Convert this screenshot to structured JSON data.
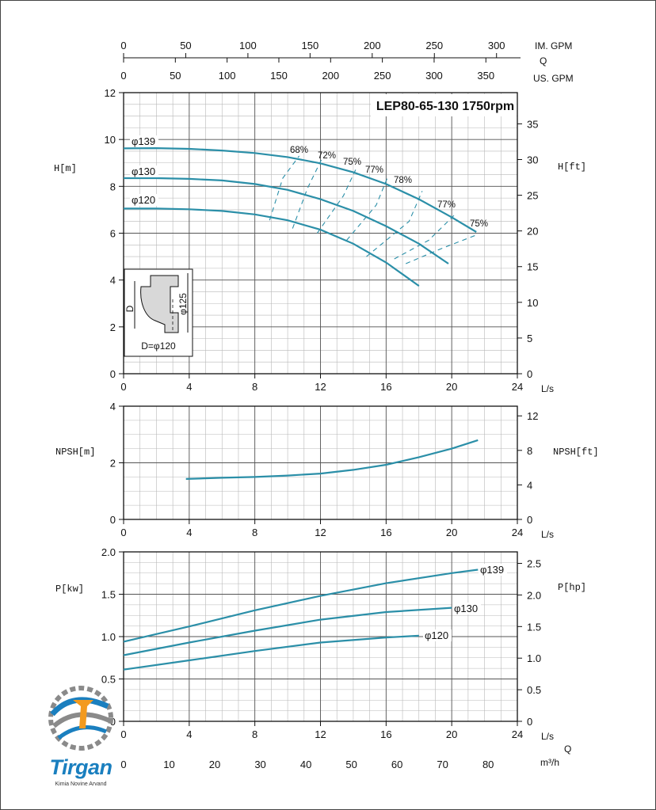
{
  "chart_data": [
    {
      "type": "line",
      "title": "LEP80-65-130 1750rpm",
      "x_axis": {
        "label": "L/s",
        "range": [
          0,
          24
        ],
        "ticks": [
          0,
          4,
          8,
          12,
          16,
          20,
          24
        ]
      },
      "top_axes": [
        {
          "label": "IM. GPM",
          "ticks": [
            0,
            50,
            100,
            150,
            200,
            250,
            300
          ]
        },
        {
          "label": "Q",
          "ticks": []
        },
        {
          "label": "US. GPM",
          "ticks": [
            0,
            50,
            100,
            150,
            200,
            250,
            300,
            350
          ]
        }
      ],
      "y_left": {
        "label": "H[m]",
        "range": [
          0,
          12
        ],
        "ticks": [
          0,
          2,
          4,
          6,
          8,
          10,
          12
        ]
      },
      "y_right": {
        "label": "H[ft]",
        "ticks": [
          0,
          5,
          10,
          15,
          20,
          25,
          30,
          35
        ]
      },
      "grid": true,
      "series": [
        {
          "name": "φ139",
          "color": "#2b8fa8",
          "x": [
            0,
            2,
            4,
            6,
            8,
            10,
            12,
            14,
            16,
            18,
            20,
            21.5
          ],
          "y": [
            9.62,
            9.63,
            9.6,
            9.53,
            9.42,
            9.25,
            8.98,
            8.6,
            8.1,
            7.45,
            6.68,
            6.05
          ]
        },
        {
          "name": "φ130",
          "color": "#2b8fa8",
          "x": [
            0,
            2,
            4,
            6,
            8,
            10,
            12,
            14,
            16,
            18,
            19.8
          ],
          "y": [
            8.35,
            8.35,
            8.32,
            8.25,
            8.1,
            7.85,
            7.45,
            6.95,
            6.3,
            5.55,
            4.7
          ]
        },
        {
          "name": "φ120",
          "color": "#2b8fa8",
          "x": [
            0,
            2,
            4,
            6,
            8,
            10,
            12,
            14,
            16,
            18
          ],
          "y": [
            7.05,
            7.05,
            7.02,
            6.95,
            6.8,
            6.55,
            6.15,
            5.55,
            4.75,
            3.75
          ]
        }
      ],
      "efficiency_labels": [
        "68%",
        "72%",
        "75%",
        "77%",
        "78%",
        "77%",
        "75%"
      ],
      "efficiency_curves": [
        {
          "label": "68%",
          "x": [
            8.9,
            9.7,
            10.7
          ],
          "y": [
            6.55,
            8.35,
            9.3
          ]
        },
        {
          "label": "72%",
          "x": [
            10.3,
            11.2,
            12.1
          ],
          "y": [
            6.2,
            7.9,
            9.2
          ]
        },
        {
          "label": "75%",
          "x": [
            11.8,
            13.4,
            14.2
          ],
          "y": [
            6.0,
            7.6,
            8.8
          ]
        },
        {
          "label": "77%",
          "x": [
            13.6,
            15.4,
            16.1
          ],
          "y": [
            5.7,
            7.2,
            8.4
          ]
        },
        {
          "label": "78%",
          "x": [
            14.8,
            17.4,
            18.2
          ],
          "y": [
            5.0,
            6.5,
            7.8
          ]
        },
        {
          "label": "77%",
          "x": [
            16.5,
            18.6,
            20.2
          ],
          "y": [
            4.9,
            5.7,
            6.8
          ]
        },
        {
          "label": "75%",
          "x": [
            17.2,
            19.4,
            21.6
          ],
          "y": [
            4.7,
            5.35,
            5.95
          ]
        }
      ],
      "inset": {
        "labels": [
          "D",
          "φ125",
          "D=φ120"
        ]
      }
    },
    {
      "type": "line",
      "x_axis": {
        "label": "L/s",
        "range": [
          0,
          24
        ],
        "ticks": [
          0,
          4,
          8,
          12,
          16,
          20,
          24
        ]
      },
      "y_left": {
        "label": "NPSH[m]",
        "range": [
          0,
          4
        ],
        "ticks": [
          0,
          2,
          4
        ]
      },
      "y_right": {
        "label": "NPSH[ft]",
        "ticks": [
          0,
          4,
          8,
          12
        ]
      },
      "grid": true,
      "series": [
        {
          "color": "#2b8fa8",
          "x": [
            3.8,
            6,
            8,
            10,
            12,
            14,
            16,
            18,
            20,
            21.6
          ],
          "y": [
            1.43,
            1.47,
            1.5,
            1.55,
            1.62,
            1.75,
            1.93,
            2.2,
            2.5,
            2.8
          ]
        }
      ]
    },
    {
      "type": "line",
      "x_axis": {
        "label": "L/s",
        "range": [
          0,
          24
        ],
        "ticks": [
          0,
          4,
          8,
          12,
          16,
          20,
          24
        ]
      },
      "bottom_axes": [
        {
          "label": "Q",
          "ticks": []
        },
        {
          "label": "m³/h",
          "ticks": [
            0,
            10,
            20,
            30,
            40,
            50,
            60,
            70,
            80
          ]
        }
      ],
      "y_left": {
        "label": "P[kw]",
        "range": [
          0,
          2.0
        ],
        "ticks": [
          "0",
          "0.5",
          "1.0",
          "1.5",
          "2.0"
        ]
      },
      "y_right": {
        "label": "P[hp]",
        "ticks": [
          "0",
          "0.5",
          "1.0",
          "1.5",
          "2.0",
          "2.5"
        ]
      },
      "grid": true,
      "series": [
        {
          "name": "φ139",
          "color": "#2b8fa8",
          "x": [
            0,
            4,
            8,
            12,
            16,
            20,
            21.6
          ],
          "y": [
            0.94,
            1.12,
            1.31,
            1.48,
            1.63,
            1.75,
            1.79
          ]
        },
        {
          "name": "φ130",
          "color": "#2b8fa8",
          "x": [
            0,
            4,
            8,
            12,
            16,
            20
          ],
          "y": [
            0.78,
            0.93,
            1.07,
            1.2,
            1.29,
            1.34
          ]
        },
        {
          "name": "φ120",
          "color": "#2b8fa8",
          "x": [
            0,
            4,
            8,
            12,
            16,
            18
          ],
          "y": [
            0.61,
            0.72,
            0.83,
            0.93,
            0.99,
            1.01
          ]
        }
      ]
    }
  ],
  "logo": {
    "brand": "Tirgan",
    "subtitle": "Kimia Novine Arvand"
  },
  "colors": {
    "curve": "#2b8fa8",
    "grid": "#999999",
    "axis": "#111111"
  }
}
